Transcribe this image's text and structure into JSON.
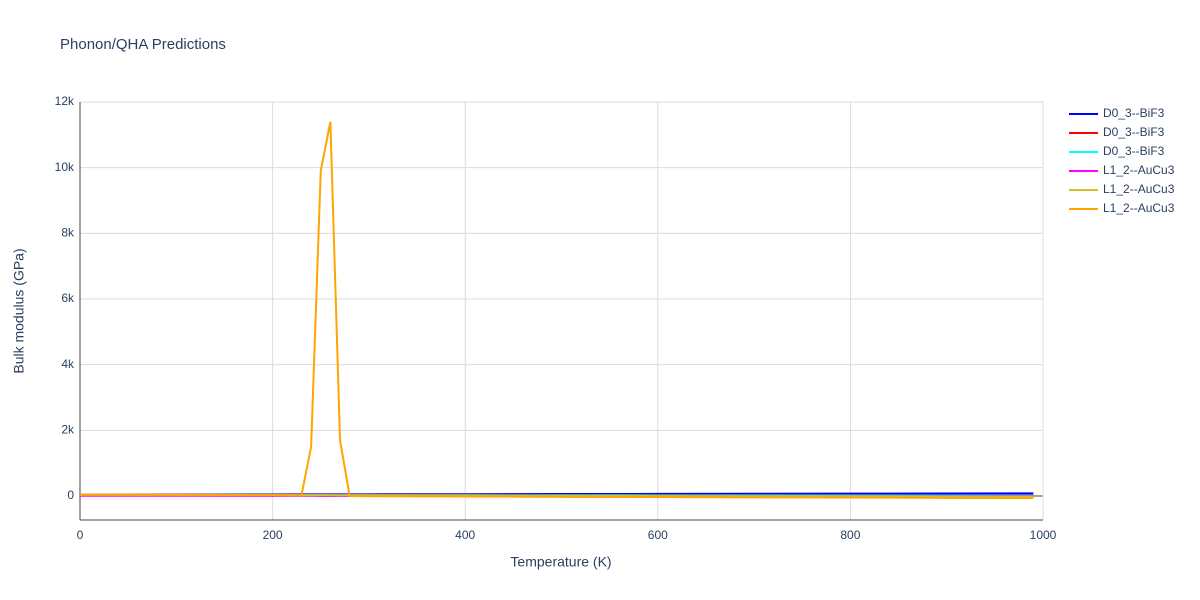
{
  "chart_data": {
    "type": "line",
    "title": "Phonon/QHA Predictions",
    "x_label": "Temperature (K)",
    "y_label": "Bulk modulus (GPa)",
    "x": [
      0,
      100,
      200,
      230,
      240,
      250,
      260,
      270,
      280,
      300,
      400,
      500,
      600,
      700,
      800,
      900,
      990
    ],
    "series": [
      {
        "name": "D0_3--BiF3",
        "color": "#0000ff",
        "values": [
          40,
          44,
          48,
          49,
          50,
          50,
          51,
          51,
          51,
          52,
          56,
          60,
          64,
          68,
          72,
          76,
          80
        ]
      },
      {
        "name": "D0_3--BiF3",
        "color": "#ff0000",
        "values": [
          30,
          29,
          28,
          28,
          28,
          27,
          27,
          27,
          27,
          27,
          26,
          25,
          24,
          23,
          22,
          21,
          20
        ]
      },
      {
        "name": "D0_3--BiF3",
        "color": "#00ffff",
        "values": [
          30,
          28,
          26,
          25,
          25,
          25,
          25,
          25,
          24,
          24,
          22,
          20,
          18,
          16,
          14,
          12,
          10
        ]
      },
      {
        "name": "L1_2--AuCu3",
        "color": "#ff00ff",
        "values": [
          10,
          7,
          4,
          3,
          3,
          2,
          2,
          2,
          2,
          1,
          -2,
          -5,
          -8,
          -11,
          -14,
          -17,
          -20
        ]
      },
      {
        "name": "L1_2--AuCu3",
        "color": "#d4c12a",
        "values": [
          40,
          33,
          26,
          24,
          23,
          22,
          22,
          21,
          20,
          19,
          12,
          5,
          -2,
          -9,
          -17,
          -24,
          -30
        ]
      },
      {
        "name": "L1_2--AuCu3",
        "color": "#ffa500",
        "values": [
          40,
          35,
          30,
          20,
          1500,
          9900,
          11400,
          1700,
          0,
          -5,
          -15,
          -25,
          -30,
          -40,
          -45,
          -55,
          -60
        ]
      }
    ],
    "xlim": [
      0,
      1000
    ],
    "xticks": [
      0,
      200,
      400,
      600,
      800,
      1000
    ],
    "ylim": [
      -730,
      12000
    ],
    "yticks": [
      0,
      {
        "value": 2000,
        "label": "2k"
      },
      {
        "value": 4000,
        "label": "4k"
      },
      {
        "value": 6000,
        "label": "6k"
      },
      {
        "value": 8000,
        "label": "8k"
      },
      {
        "value": 10000,
        "label": "10k"
      },
      {
        "value": 12000,
        "label": "12k"
      }
    ],
    "grid": true
  }
}
